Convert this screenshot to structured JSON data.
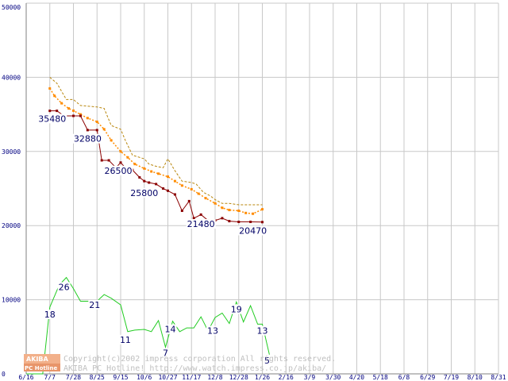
{
  "chart_data": {
    "type": "line",
    "ylim": [
      0,
      50000
    ],
    "yticks": [
      0,
      10000,
      20000,
      30000,
      40000,
      50000
    ],
    "x_labels": [
      "6/16",
      "7/7",
      "7/28",
      "8/25",
      "9/15",
      "10/6",
      "10/27",
      "11/17",
      "12/8",
      "12/28",
      "1/26",
      "2/16",
      "3/9",
      "3/30",
      "4/20",
      "5/18",
      "6/8",
      "6/29",
      "7/19",
      "8/10",
      "8/31"
    ],
    "grid": true,
    "series": [
      {
        "role": "max",
        "color": "#b8860b",
        "style": "dashed",
        "points": [
          [
            1.0,
            40000
          ],
          [
            1.3,
            39200
          ],
          [
            1.7,
            37000
          ],
          [
            2.0,
            37000
          ],
          [
            2.3,
            36200
          ],
          [
            3.0,
            36000
          ],
          [
            3.3,
            35800
          ],
          [
            3.6,
            33500
          ],
          [
            4.0,
            33000
          ],
          [
            4.2,
            31500
          ],
          [
            4.5,
            29500
          ],
          [
            5.0,
            29000
          ],
          [
            5.2,
            28300
          ],
          [
            5.5,
            28000
          ],
          [
            5.8,
            27800
          ],
          [
            6.0,
            29000
          ],
          [
            6.3,
            27400
          ],
          [
            6.6,
            26000
          ],
          [
            7.0,
            25800
          ],
          [
            7.2,
            25600
          ],
          [
            7.5,
            24500
          ],
          [
            7.8,
            24000
          ],
          [
            8.0,
            23500
          ],
          [
            8.3,
            23000
          ],
          [
            8.6,
            23000
          ],
          [
            9.0,
            22800
          ],
          [
            9.5,
            22800
          ],
          [
            10.0,
            22800
          ]
        ]
      },
      {
        "role": "average",
        "color": "#ff8c00",
        "style": "dotted-markers",
        "points": [
          [
            1.0,
            38500
          ],
          [
            1.2,
            37500
          ],
          [
            1.5,
            36500
          ],
          [
            1.8,
            35800
          ],
          [
            2.0,
            35500
          ],
          [
            2.3,
            35000
          ],
          [
            2.6,
            34500
          ],
          [
            3.0,
            34000
          ],
          [
            3.3,
            33000
          ],
          [
            3.6,
            31500
          ],
          [
            4.0,
            30000
          ],
          [
            4.3,
            29200
          ],
          [
            4.6,
            28300
          ],
          [
            5.0,
            27700
          ],
          [
            5.3,
            27300
          ],
          [
            5.6,
            27000
          ],
          [
            6.0,
            26600
          ],
          [
            6.3,
            26000
          ],
          [
            6.6,
            25400
          ],
          [
            7.0,
            24900
          ],
          [
            7.3,
            24300
          ],
          [
            7.6,
            23700
          ],
          [
            8.0,
            23000
          ],
          [
            8.3,
            22400
          ],
          [
            8.6,
            22100
          ],
          [
            9.0,
            22000
          ],
          [
            9.3,
            21700
          ],
          [
            9.6,
            21600
          ],
          [
            10.0,
            22200
          ]
        ]
      },
      {
        "role": "min",
        "color": "#8b0000",
        "style": "solid-markers",
        "points": [
          [
            1.0,
            35480
          ],
          [
            1.3,
            35480
          ],
          [
            1.6,
            34800
          ],
          [
            2.0,
            34800
          ],
          [
            2.3,
            34800
          ],
          [
            2.6,
            32880
          ],
          [
            3.0,
            32880
          ],
          [
            3.2,
            28800
          ],
          [
            3.5,
            28800
          ],
          [
            3.8,
            27800
          ],
          [
            4.0,
            28500
          ],
          [
            4.2,
            27800
          ],
          [
            4.5,
            27500
          ],
          [
            4.8,
            26500
          ],
          [
            5.0,
            26000
          ],
          [
            5.2,
            25800
          ],
          [
            5.5,
            25600
          ],
          [
            5.8,
            25000
          ],
          [
            6.0,
            24700
          ],
          [
            6.3,
            24200
          ],
          [
            6.6,
            22000
          ],
          [
            6.9,
            23300
          ],
          [
            7.1,
            21000
          ],
          [
            7.4,
            21480
          ],
          [
            7.7,
            20700
          ],
          [
            8.0,
            20700
          ],
          [
            8.3,
            21000
          ],
          [
            8.6,
            20600
          ],
          [
            9.0,
            20500
          ],
          [
            9.5,
            20500
          ],
          [
            10.0,
            20470
          ]
        ]
      },
      {
        "role": "shop-count",
        "color": "#22cc22",
        "style": "solid",
        "points": [
          [
            0,
            0
          ],
          [
            0.7,
            0
          ],
          [
            1.0,
            9000
          ],
          [
            1.4,
            12000
          ],
          [
            1.7,
            13000
          ],
          [
            2.0,
            11500
          ],
          [
            2.3,
            9800
          ],
          [
            2.7,
            9800
          ],
          [
            3.0,
            9800
          ],
          [
            3.3,
            10700
          ],
          [
            3.6,
            10200
          ],
          [
            4.0,
            9300
          ],
          [
            4.3,
            5700
          ],
          [
            4.6,
            5900
          ],
          [
            5.0,
            6000
          ],
          [
            5.3,
            5700
          ],
          [
            5.6,
            7200
          ],
          [
            5.9,
            3600
          ],
          [
            6.2,
            7100
          ],
          [
            6.5,
            5700
          ],
          [
            6.8,
            6200
          ],
          [
            7.1,
            6200
          ],
          [
            7.4,
            7700
          ],
          [
            7.7,
            5800
          ],
          [
            8.0,
            7600
          ],
          [
            8.3,
            8200
          ],
          [
            8.6,
            6800
          ],
          [
            8.9,
            9700
          ],
          [
            9.2,
            7000
          ],
          [
            9.5,
            9200
          ],
          [
            9.8,
            6700
          ],
          [
            10.0,
            6700
          ],
          [
            10.3,
            2600
          ]
        ]
      }
    ],
    "data_labels": [
      {
        "text": "35480",
        "x": 1.1,
        "y": 34000
      },
      {
        "text": "32880",
        "x": 2.6,
        "y": 31300
      },
      {
        "text": "26500",
        "x": 3.9,
        "y": 27000
      },
      {
        "text": "25800",
        "x": 5.0,
        "y": 24000
      },
      {
        "text": "21480",
        "x": 7.4,
        "y": 19800
      },
      {
        "text": "20470",
        "x": 9.6,
        "y": 18900
      },
      {
        "text": "18",
        "x": 1.0,
        "y": 7600
      },
      {
        "text": "26",
        "x": 1.6,
        "y": 11300
      },
      {
        "text": "21",
        "x": 2.9,
        "y": 8900
      },
      {
        "text": "11",
        "x": 4.2,
        "y": 4200
      },
      {
        "text": "14",
        "x": 6.1,
        "y": 5600
      },
      {
        "text": "7",
        "x": 5.9,
        "y": 2400
      },
      {
        "text": "13",
        "x": 7.9,
        "y": 5400
      },
      {
        "text": "19",
        "x": 8.9,
        "y": 8300
      },
      {
        "text": "13",
        "x": 10.0,
        "y": 5400
      },
      {
        "text": "5",
        "x": 10.2,
        "y": 1400
      }
    ]
  },
  "watermark": {
    "line1": "Copyright(c)2002 impress corporation All rights reserved.",
    "line2": "AKIBA PC Hotline! http://www.watch.impress.co.jp/akiba/"
  },
  "logo": {
    "top": "AKIBA",
    "bottom": "PC Hotline"
  }
}
